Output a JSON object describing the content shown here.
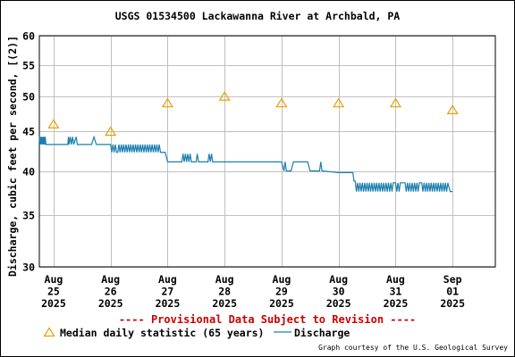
{
  "title": "USGS 01534500 Lackawanna River at Archbald, PA",
  "provisional_notice": "---- Provisional Data Subject to Revision ----",
  "credit": "Graph courtesy of the U.S. Geological Survey",
  "colors": {
    "discharge": "#1a7fb0",
    "median": "#e8a000",
    "provisional": "#cc0000",
    "grid": "#c0c0c0"
  },
  "chart_data": {
    "type": "line",
    "title": "USGS 01534500 Lackawanna River at Archbald, PA",
    "ylabel": "Discharge, cubic feet per second, [(2)]",
    "xlabel": "",
    "y_scale": "log",
    "ylim": [
      30,
      60
    ],
    "y_ticks": [
      30,
      35,
      40,
      45,
      50,
      55,
      60
    ],
    "xlim": [
      "2025-08-24T18:00",
      "2025-09-01T18:00"
    ],
    "x_ticks": [
      {
        "date": "2025-08-25",
        "label": [
          "Aug",
          "25",
          "2025"
        ]
      },
      {
        "date": "2025-08-26",
        "label": [
          "Aug",
          "26",
          "2025"
        ]
      },
      {
        "date": "2025-08-27",
        "label": [
          "Aug",
          "27",
          "2025"
        ]
      },
      {
        "date": "2025-08-28",
        "label": [
          "Aug",
          "28",
          "2025"
        ]
      },
      {
        "date": "2025-08-29",
        "label": [
          "Aug",
          "29",
          "2025"
        ]
      },
      {
        "date": "2025-08-30",
        "label": [
          "Aug",
          "30",
          "2025"
        ]
      },
      {
        "date": "2025-08-31",
        "label": [
          "Aug",
          "31",
          "2025"
        ]
      },
      {
        "date": "2025-09-01",
        "label": [
          "Sep",
          "01",
          "2025"
        ]
      }
    ],
    "grid": true,
    "legend": "bottom",
    "series": [
      {
        "name": "Median daily statistic (65 years)",
        "type": "scatter",
        "marker": "triangle",
        "points": [
          {
            "x": "2025-08-25",
            "y": 46
          },
          {
            "x": "2025-08-26",
            "y": 45
          },
          {
            "x": "2025-08-27",
            "y": 49
          },
          {
            "x": "2025-08-28",
            "y": 50
          },
          {
            "x": "2025-08-29",
            "y": 49
          },
          {
            "x": "2025-08-30",
            "y": 49
          },
          {
            "x": "2025-08-31",
            "y": 49
          },
          {
            "x": "2025-09-01",
            "y": 48
          }
        ]
      },
      {
        "name": "Discharge",
        "type": "line",
        "points": [
          {
            "x": "2025-08-24T18:00",
            "y": 44.3
          },
          {
            "x": "2025-08-24T18:15",
            "y": 43.3
          },
          {
            "x": "2025-08-24T18:30",
            "y": 44.3
          },
          {
            "x": "2025-08-24T18:45",
            "y": 43.3
          },
          {
            "x": "2025-08-24T19:00",
            "y": 44.3
          },
          {
            "x": "2025-08-24T19:15",
            "y": 43.3
          },
          {
            "x": "2025-08-24T19:30",
            "y": 44.3
          },
          {
            "x": "2025-08-24T19:45",
            "y": 43.3
          },
          {
            "x": "2025-08-24T20:00",
            "y": 44.3
          },
          {
            "x": "2025-08-24T20:15",
            "y": 43.3
          },
          {
            "x": "2025-08-24T20:30",
            "y": 44.3
          },
          {
            "x": "2025-08-24T20:45",
            "y": 43.3
          },
          {
            "x": "2025-08-25T06:00",
            "y": 43.3
          },
          {
            "x": "2025-08-25T06:15",
            "y": 44.3
          },
          {
            "x": "2025-08-25T06:30",
            "y": 43.3
          },
          {
            "x": "2025-08-25T07:00",
            "y": 44.3
          },
          {
            "x": "2025-08-25T07:30",
            "y": 43.3
          },
          {
            "x": "2025-08-25T08:00",
            "y": 44.3
          },
          {
            "x": "2025-08-25T08:30",
            "y": 43.3
          },
          {
            "x": "2025-08-25T09:30",
            "y": 44.3
          },
          {
            "x": "2025-08-25T10:00",
            "y": 43.3
          },
          {
            "x": "2025-08-25T16:00",
            "y": 43.3
          },
          {
            "x": "2025-08-25T17:00",
            "y": 44.3
          },
          {
            "x": "2025-08-25T18:00",
            "y": 43.3
          },
          {
            "x": "2025-08-26T00:00",
            "y": 43.3
          },
          {
            "x": "2025-08-26T00:30",
            "y": 42.3
          },
          {
            "x": "2025-08-26T01:00",
            "y": 43.3
          },
          {
            "x": "2025-08-26T01:30",
            "y": 42.3
          },
          {
            "x": "2025-08-26T02:00",
            "y": 43.3
          },
          {
            "x": "2025-08-26T02:30",
            "y": 42.3
          },
          {
            "x": "2025-08-26T03:00",
            "y": 42.3
          },
          {
            "x": "2025-08-26T03:30",
            "y": 43.3
          },
          {
            "x": "2025-08-26T04:00",
            "y": 42.3
          },
          {
            "x": "2025-08-26T04:30",
            "y": 43.3
          },
          {
            "x": "2025-08-26T05:00",
            "y": 42.3
          },
          {
            "x": "2025-08-26T05:30",
            "y": 43.3
          },
          {
            "x": "2025-08-26T06:00",
            "y": 42.3
          },
          {
            "x": "2025-08-26T06:30",
            "y": 43.3
          },
          {
            "x": "2025-08-26T07:00",
            "y": 42.3
          },
          {
            "x": "2025-08-26T07:30",
            "y": 43.3
          },
          {
            "x": "2025-08-26T08:00",
            "y": 42.3
          },
          {
            "x": "2025-08-26T08:30",
            "y": 43.3
          },
          {
            "x": "2025-08-26T09:00",
            "y": 42.3
          },
          {
            "x": "2025-08-26T09:30",
            "y": 43.3
          },
          {
            "x": "2025-08-26T10:00",
            "y": 42.3
          },
          {
            "x": "2025-08-26T10:30",
            "y": 43.3
          },
          {
            "x": "2025-08-26T11:00",
            "y": 42.3
          },
          {
            "x": "2025-08-26T11:30",
            "y": 43.3
          },
          {
            "x": "2025-08-26T12:00",
            "y": 42.3
          },
          {
            "x": "2025-08-26T12:30",
            "y": 43.3
          },
          {
            "x": "2025-08-26T13:00",
            "y": 42.3
          },
          {
            "x": "2025-08-26T13:30",
            "y": 43.3
          },
          {
            "x": "2025-08-26T14:00",
            "y": 42.3
          },
          {
            "x": "2025-08-26T14:30",
            "y": 43.3
          },
          {
            "x": "2025-08-26T15:00",
            "y": 42.3
          },
          {
            "x": "2025-08-26T15:30",
            "y": 43.3
          },
          {
            "x": "2025-08-26T16:00",
            "y": 42.3
          },
          {
            "x": "2025-08-26T16:30",
            "y": 43.3
          },
          {
            "x": "2025-08-26T17:00",
            "y": 42.3
          },
          {
            "x": "2025-08-26T17:30",
            "y": 43.3
          },
          {
            "x": "2025-08-26T18:00",
            "y": 42.3
          },
          {
            "x": "2025-08-26T18:30",
            "y": 43.3
          },
          {
            "x": "2025-08-26T19:00",
            "y": 42.3
          },
          {
            "x": "2025-08-26T19:30",
            "y": 43.3
          },
          {
            "x": "2025-08-26T20:00",
            "y": 42.3
          },
          {
            "x": "2025-08-26T20:30",
            "y": 43.3
          },
          {
            "x": "2025-08-26T21:00",
            "y": 42.3
          },
          {
            "x": "2025-08-26T23:00",
            "y": 42.3
          },
          {
            "x": "2025-08-27T00:00",
            "y": 41.1
          },
          {
            "x": "2025-08-27T06:00",
            "y": 41.1
          },
          {
            "x": "2025-08-27T06:30",
            "y": 42.1
          },
          {
            "x": "2025-08-27T07:00",
            "y": 41.1
          },
          {
            "x": "2025-08-27T07:30",
            "y": 42.1
          },
          {
            "x": "2025-08-27T08:00",
            "y": 41.1
          },
          {
            "x": "2025-08-27T08:30",
            "y": 42.1
          },
          {
            "x": "2025-08-27T09:00",
            "y": 41.1
          },
          {
            "x": "2025-08-27T09:30",
            "y": 42.1
          },
          {
            "x": "2025-08-27T10:00",
            "y": 41.1
          },
          {
            "x": "2025-08-27T12:00",
            "y": 41.1
          },
          {
            "x": "2025-08-27T12:30",
            "y": 42.1
          },
          {
            "x": "2025-08-27T13:00",
            "y": 41.1
          },
          {
            "x": "2025-08-27T17:00",
            "y": 41.1
          },
          {
            "x": "2025-08-27T17:30",
            "y": 42.1
          },
          {
            "x": "2025-08-27T18:00",
            "y": 41.1
          },
          {
            "x": "2025-08-27T18:30",
            "y": 42.1
          },
          {
            "x": "2025-08-27T19:00",
            "y": 41.1
          },
          {
            "x": "2025-08-29T00:00",
            "y": 41.1
          },
          {
            "x": "2025-08-29T01:00",
            "y": 40.0
          },
          {
            "x": "2025-08-29T01:30",
            "y": 41.1
          },
          {
            "x": "2025-08-29T02:00",
            "y": 40.0
          },
          {
            "x": "2025-08-29T04:00",
            "y": 40.0
          },
          {
            "x": "2025-08-29T05:00",
            "y": 41.1
          },
          {
            "x": "2025-08-29T11:00",
            "y": 41.1
          },
          {
            "x": "2025-08-29T12:00",
            "y": 40.0
          },
          {
            "x": "2025-08-29T16:00",
            "y": 40.0
          },
          {
            "x": "2025-08-29T16:30",
            "y": 41.1
          },
          {
            "x": "2025-08-29T17:00",
            "y": 40.0
          },
          {
            "x": "2025-08-30T00:00",
            "y": 39.8
          },
          {
            "x": "2025-08-30T06:00",
            "y": 39.8
          },
          {
            "x": "2025-08-30T06:30",
            "y": 38.8
          },
          {
            "x": "2025-08-30T07:00",
            "y": 38.8
          },
          {
            "x": "2025-08-30T07:30",
            "y": 37.6
          },
          {
            "x": "2025-08-30T08:00",
            "y": 38.6
          },
          {
            "x": "2025-08-30T08:30",
            "y": 37.6
          },
          {
            "x": "2025-08-30T09:00",
            "y": 38.6
          },
          {
            "x": "2025-08-30T09:30",
            "y": 37.6
          },
          {
            "x": "2025-08-30T10:00",
            "y": 38.6
          },
          {
            "x": "2025-08-30T10:30",
            "y": 37.6
          },
          {
            "x": "2025-08-30T11:00",
            "y": 38.6
          },
          {
            "x": "2025-08-30T11:30",
            "y": 37.6
          },
          {
            "x": "2025-08-30T12:00",
            "y": 38.6
          },
          {
            "x": "2025-08-30T12:30",
            "y": 37.6
          },
          {
            "x": "2025-08-30T13:00",
            "y": 38.6
          },
          {
            "x": "2025-08-30T13:30",
            "y": 37.6
          },
          {
            "x": "2025-08-30T14:00",
            "y": 38.6
          },
          {
            "x": "2025-08-30T14:30",
            "y": 37.6
          },
          {
            "x": "2025-08-30T15:00",
            "y": 38.6
          },
          {
            "x": "2025-08-30T15:30",
            "y": 37.6
          },
          {
            "x": "2025-08-30T16:00",
            "y": 38.6
          },
          {
            "x": "2025-08-30T16:30",
            "y": 37.6
          },
          {
            "x": "2025-08-30T17:00",
            "y": 38.6
          },
          {
            "x": "2025-08-30T17:30",
            "y": 37.6
          },
          {
            "x": "2025-08-30T18:00",
            "y": 38.6
          },
          {
            "x": "2025-08-30T18:30",
            "y": 37.6
          },
          {
            "x": "2025-08-30T19:00",
            "y": 38.6
          },
          {
            "x": "2025-08-30T19:30",
            "y": 37.6
          },
          {
            "x": "2025-08-30T20:00",
            "y": 38.6
          },
          {
            "x": "2025-08-30T20:30",
            "y": 37.6
          },
          {
            "x": "2025-08-30T21:00",
            "y": 38.6
          },
          {
            "x": "2025-08-30T21:30",
            "y": 37.6
          },
          {
            "x": "2025-08-30T22:00",
            "y": 38.6
          },
          {
            "x": "2025-08-30T22:30",
            "y": 37.6
          },
          {
            "x": "2025-08-30T23:00",
            "y": 38.6
          },
          {
            "x": "2025-08-31T00:00",
            "y": 38.6
          },
          {
            "x": "2025-08-31T00:30",
            "y": 37.6
          },
          {
            "x": "2025-08-31T01:00",
            "y": 38.6
          },
          {
            "x": "2025-08-31T01:30",
            "y": 37.6
          },
          {
            "x": "2025-08-31T02:00",
            "y": 38.6
          },
          {
            "x": "2025-08-31T04:00",
            "y": 38.6
          },
          {
            "x": "2025-08-31T04:30",
            "y": 37.6
          },
          {
            "x": "2025-08-31T05:00",
            "y": 38.6
          },
          {
            "x": "2025-08-31T05:30",
            "y": 37.6
          },
          {
            "x": "2025-08-31T06:00",
            "y": 38.6
          },
          {
            "x": "2025-08-31T06:30",
            "y": 37.6
          },
          {
            "x": "2025-08-31T07:00",
            "y": 38.6
          },
          {
            "x": "2025-08-31T07:30",
            "y": 37.6
          },
          {
            "x": "2025-08-31T08:00",
            "y": 38.6
          },
          {
            "x": "2025-08-31T08:30",
            "y": 37.6
          },
          {
            "x": "2025-08-31T09:00",
            "y": 38.6
          },
          {
            "x": "2025-08-31T09:30",
            "y": 37.6
          },
          {
            "x": "2025-08-31T10:00",
            "y": 38.6
          },
          {
            "x": "2025-08-31T11:00",
            "y": 38.6
          },
          {
            "x": "2025-08-31T11:30",
            "y": 37.6
          },
          {
            "x": "2025-08-31T12:00",
            "y": 38.6
          },
          {
            "x": "2025-08-31T12:30",
            "y": 37.6
          },
          {
            "x": "2025-08-31T13:00",
            "y": 38.6
          },
          {
            "x": "2025-08-31T13:30",
            "y": 37.6
          },
          {
            "x": "2025-08-31T14:00",
            "y": 38.6
          },
          {
            "x": "2025-08-31T14:30",
            "y": 37.6
          },
          {
            "x": "2025-08-31T15:00",
            "y": 38.6
          },
          {
            "x": "2025-08-31T15:30",
            "y": 37.6
          },
          {
            "x": "2025-08-31T16:00",
            "y": 38.6
          },
          {
            "x": "2025-08-31T16:30",
            "y": 37.6
          },
          {
            "x": "2025-08-31T17:00",
            "y": 38.6
          },
          {
            "x": "2025-08-31T17:30",
            "y": 37.6
          },
          {
            "x": "2025-08-31T18:00",
            "y": 38.6
          },
          {
            "x": "2025-08-31T18:30",
            "y": 37.6
          },
          {
            "x": "2025-08-31T19:00",
            "y": 38.6
          },
          {
            "x": "2025-08-31T19:30",
            "y": 37.6
          },
          {
            "x": "2025-08-31T20:00",
            "y": 38.6
          },
          {
            "x": "2025-08-31T20:30",
            "y": 37.6
          },
          {
            "x": "2025-08-31T21:00",
            "y": 38.6
          },
          {
            "x": "2025-08-31T21:30",
            "y": 37.6
          },
          {
            "x": "2025-08-31T22:00",
            "y": 38.6
          },
          {
            "x": "2025-08-31T23:00",
            "y": 37.6
          },
          {
            "x": "2025-09-01T00:00",
            "y": 37.6
          }
        ]
      }
    ]
  },
  "legend_items": {
    "median_label": "Median daily statistic (65 years)",
    "discharge_label": "Discharge"
  }
}
